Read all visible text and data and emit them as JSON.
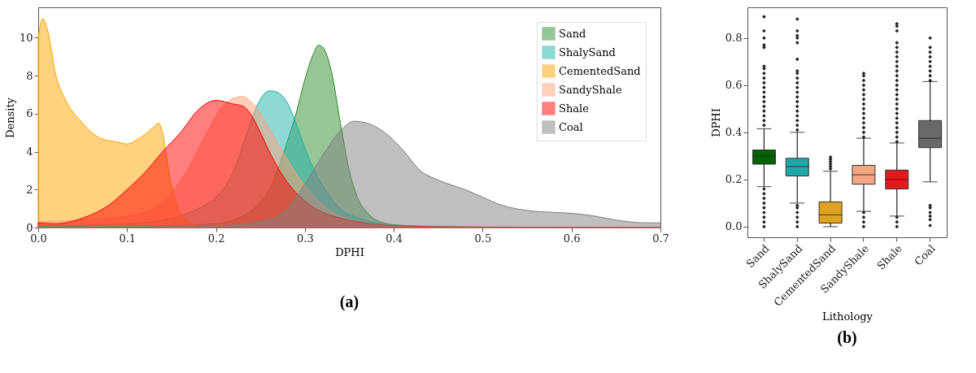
{
  "chart_data": [
    {
      "type": "area",
      "title": "(a)",
      "xlabel": "DPHI",
      "ylabel": "Density",
      "xlim": [
        0,
        0.7
      ],
      "xticks": [
        {
          "value": 0,
          "label": "0.0"
        },
        0.1,
        0.2,
        0.3,
        0.4,
        0.5,
        0.6,
        0.7
      ],
      "ylim": [
        0,
        11.6
      ],
      "yticks": [
        0,
        2,
        4,
        6,
        8,
        10
      ],
      "legend": "top right",
      "series": [
        {
          "name": "Sand",
          "color": "#2e8b2e",
          "x": [
            0,
            0.1,
            0.15,
            0.2,
            0.22,
            0.24,
            0.26,
            0.28,
            0.29,
            0.3,
            0.31,
            0.315,
            0.32,
            0.33,
            0.34,
            0.35,
            0.36,
            0.37,
            0.38,
            0.4,
            0.45,
            0.5,
            0.7
          ],
          "values": [
            0.05,
            0.05,
            0.1,
            0.2,
            0.4,
            0.9,
            2.0,
            4.5,
            6.0,
            7.8,
            9.2,
            9.6,
            9.5,
            8.2,
            5.5,
            3.0,
            1.5,
            0.8,
            0.4,
            0.15,
            0.05,
            0.02,
            0
          ]
        },
        {
          "name": "ShalySand",
          "color": "#20b2aa",
          "x": [
            0,
            0.1,
            0.15,
            0.18,
            0.2,
            0.22,
            0.235,
            0.245,
            0.26,
            0.27,
            0.28,
            0.29,
            0.3,
            0.32,
            0.34,
            0.36,
            0.38,
            0.4,
            0.45,
            0.7
          ],
          "values": [
            0.1,
            0.2,
            0.5,
            1.0,
            1.6,
            3.0,
            5.0,
            6.3,
            7.2,
            7.1,
            6.6,
            5.5,
            4.2,
            2.2,
            1.0,
            0.5,
            0.25,
            0.1,
            0.03,
            0
          ]
        },
        {
          "name": "CementedSand",
          "color": "#ffa500",
          "x": [
            0,
            0.005,
            0.01,
            0.02,
            0.03,
            0.05,
            0.07,
            0.09,
            0.1,
            0.11,
            0.12,
            0.13,
            0.135,
            0.14,
            0.145,
            0.15,
            0.16,
            0.17,
            0.18,
            0.2,
            0.7
          ],
          "values": [
            10.0,
            11.0,
            10.5,
            8.0,
            6.8,
            5.5,
            4.7,
            4.5,
            4.4,
            4.6,
            4.9,
            5.3,
            5.5,
            5.0,
            3.5,
            2.2,
            0.8,
            0.3,
            0.1,
            0.02,
            0
          ]
        },
        {
          "name": "SandyShale",
          "color": "#ffa07a",
          "x": [
            0,
            0.05,
            0.1,
            0.13,
            0.15,
            0.17,
            0.19,
            0.21,
            0.23,
            0.24,
            0.26,
            0.28,
            0.3,
            0.32,
            0.34,
            0.36,
            0.4,
            0.5,
            0.7
          ],
          "values": [
            0.3,
            0.4,
            0.6,
            1.0,
            1.8,
            3.2,
            5.0,
            6.5,
            6.9,
            6.6,
            5.2,
            3.6,
            2.2,
            1.2,
            0.6,
            0.3,
            0.1,
            0.02,
            0
          ]
        },
        {
          "name": "Shale",
          "color": "#ff0000",
          "x": [
            0,
            0.02,
            0.05,
            0.08,
            0.1,
            0.12,
            0.14,
            0.16,
            0.18,
            0.2,
            0.22,
            0.23,
            0.24,
            0.25,
            0.26,
            0.28,
            0.3,
            0.32,
            0.34,
            0.36,
            0.4,
            0.5,
            0.7
          ],
          "values": [
            0.25,
            0.2,
            0.5,
            1.2,
            2.0,
            2.9,
            4.0,
            5.0,
            6.2,
            6.7,
            6.5,
            6.4,
            5.9,
            5.0,
            4.0,
            2.4,
            1.4,
            0.8,
            0.5,
            0.3,
            0.1,
            0.03,
            0
          ]
        },
        {
          "name": "Coal",
          "color": "#808080",
          "x": [
            0,
            0.2,
            0.25,
            0.28,
            0.3,
            0.32,
            0.34,
            0.355,
            0.37,
            0.39,
            0.41,
            0.43,
            0.45,
            0.48,
            0.5,
            0.52,
            0.55,
            0.58,
            0.6,
            0.62,
            0.65,
            0.68,
            0.7
          ],
          "values": [
            0.05,
            0.1,
            0.3,
            1.0,
            2.3,
            3.8,
            5.1,
            5.6,
            5.5,
            5.0,
            4.1,
            3.0,
            2.5,
            2.0,
            1.6,
            1.2,
            0.9,
            0.8,
            0.75,
            0.65,
            0.4,
            0.25,
            0.25
          ]
        }
      ]
    },
    {
      "type": "box",
      "title": "(b)",
      "xlabel": "Lithology",
      "ylabel": "DPHI",
      "ylim": [
        -0.045,
        0.93
      ],
      "yticks": [
        {
          "value": 0,
          "label": "0.0"
        },
        0.2,
        0.4,
        0.6,
        0.8
      ],
      "marker": "diamond",
      "categories": [
        "Sand",
        "ShalySand",
        "CementedSand",
        "SandyShale",
        "Shale",
        "Coal"
      ],
      "colors": [
        "#006400",
        "#20a8a8",
        "#e0a020",
        "#f4a582",
        "#e31a1c",
        "#696969"
      ],
      "boxes": [
        {
          "low": 0.17,
          "q1": 0.265,
          "median": 0.3,
          "q3": 0.325,
          "high": 0.415,
          "outliers": [
            0.0,
            0.02,
            0.04,
            0.06,
            0.08,
            0.1,
            0.12,
            0.14,
            0.16,
            0.43,
            0.45,
            0.47,
            0.49,
            0.51,
            0.53,
            0.55,
            0.57,
            0.59,
            0.61,
            0.63,
            0.65,
            0.67,
            0.68,
            0.76,
            0.77,
            0.8,
            0.83,
            0.89
          ]
        },
        {
          "low": 0.1,
          "q1": 0.215,
          "median": 0.255,
          "q3": 0.29,
          "high": 0.4,
          "outliers": [
            0.0,
            0.02,
            0.04,
            0.06,
            0.08,
            0.09,
            0.41,
            0.43,
            0.45,
            0.47,
            0.49,
            0.51,
            0.53,
            0.55,
            0.57,
            0.59,
            0.61,
            0.63,
            0.65,
            0.66,
            0.71,
            0.78,
            0.8,
            0.81,
            0.83,
            0.88
          ]
        },
        {
          "low": 0.0,
          "q1": 0.015,
          "median": 0.05,
          "q3": 0.105,
          "high": 0.235,
          "outliers": [
            0.245,
            0.255,
            0.265,
            0.275,
            0.285,
            0.295
          ]
        },
        {
          "low": 0.065,
          "q1": 0.18,
          "median": 0.22,
          "q3": 0.26,
          "high": 0.375,
          "outliers": [
            0.0,
            0.02,
            0.04,
            0.06,
            0.38,
            0.4,
            0.42,
            0.44,
            0.46,
            0.48,
            0.5,
            0.52,
            0.54,
            0.56,
            0.58,
            0.6,
            0.62,
            0.64,
            0.65
          ]
        },
        {
          "low": 0.045,
          "q1": 0.16,
          "median": 0.2,
          "q3": 0.24,
          "high": 0.355,
          "outliers": [
            0.0,
            0.02,
            0.04,
            0.36,
            0.38,
            0.4,
            0.42,
            0.44,
            0.46,
            0.48,
            0.5,
            0.52,
            0.54,
            0.56,
            0.58,
            0.6,
            0.62,
            0.64,
            0.66,
            0.68,
            0.7,
            0.72,
            0.74,
            0.76,
            0.78,
            0.83,
            0.85,
            0.86
          ]
        },
        {
          "low": 0.19,
          "q1": 0.335,
          "median": 0.375,
          "q3": 0.45,
          "high": 0.615,
          "outliers": [
            0.005,
            0.03,
            0.045,
            0.06,
            0.08,
            0.09,
            0.62,
            0.64,
            0.66,
            0.68,
            0.7,
            0.72,
            0.74,
            0.76,
            0.8
          ]
        }
      ]
    }
  ]
}
